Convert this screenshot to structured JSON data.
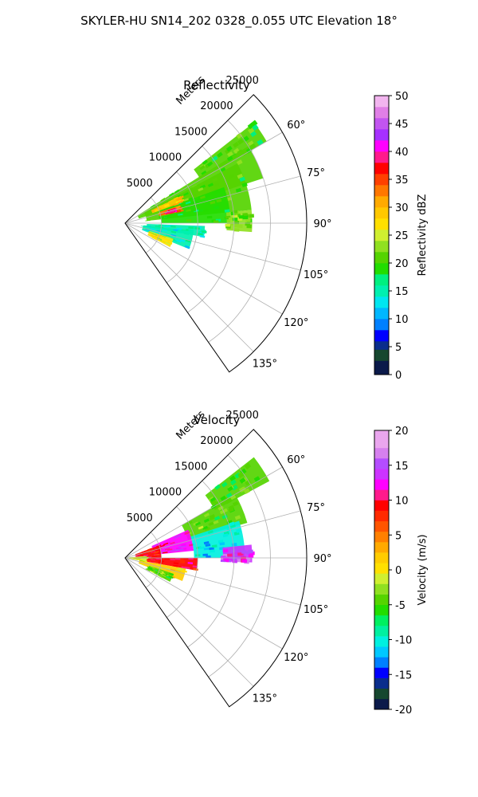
{
  "figure": {
    "suptitle": "SKYLER-HU  SN14_202  0328_0.055 UTC Elevation 18°"
  },
  "chart_data": [
    {
      "type": "heatmap",
      "projection": "polar-sector",
      "title": "Reflectivity",
      "radial_axis_label": "Meters",
      "radial_range": [
        0,
        25000
      ],
      "radial_ticks": [
        5000,
        10000,
        15000,
        20000,
        25000
      ],
      "radial_tick_labels": [
        "5000",
        "10000",
        "15000",
        "20000",
        "25000"
      ],
      "azimuth_range_deg": [
        45,
        145
      ],
      "azimuth_ticks": [
        60,
        75,
        90,
        105,
        120,
        135
      ],
      "azimuth_tick_labels": [
        "60°",
        "75°",
        "90°",
        "105°",
        "120°",
        "135°"
      ],
      "grid": true,
      "colorbar": {
        "label": "Reflectivity dBZ",
        "range": [
          0,
          50
        ],
        "ticks": [
          0,
          5,
          10,
          15,
          20,
          25,
          30,
          35,
          40,
          45,
          50
        ],
        "tick_labels": [
          "0",
          "5",
          "10",
          "15",
          "20",
          "25",
          "30",
          "35",
          "40",
          "45",
          "50"
        ],
        "stops": [
          [
            0,
            "#0b1a4a"
          ],
          [
            2.5,
            "#16472f"
          ],
          [
            4.5,
            "#0a2d8c"
          ],
          [
            6,
            "#0000ff"
          ],
          [
            8,
            "#0080ff"
          ],
          [
            10,
            "#00b7ff"
          ],
          [
            12,
            "#00e6f0"
          ],
          [
            14,
            "#00f0b0"
          ],
          [
            16,
            "#00f080"
          ],
          [
            18,
            "#22dd00"
          ],
          [
            20,
            "#55d400"
          ],
          [
            22,
            "#90e020"
          ],
          [
            24,
            "#d0ef30"
          ],
          [
            26,
            "#ffe000"
          ],
          [
            28,
            "#ffc800"
          ],
          [
            30,
            "#ffaa00"
          ],
          [
            32,
            "#ff7700"
          ],
          [
            34,
            "#ff4000"
          ],
          [
            36,
            "#ff0000"
          ],
          [
            38,
            "#ff1a8c"
          ],
          [
            40,
            "#ff00ff"
          ],
          [
            42,
            "#a630ff"
          ],
          [
            44,
            "#c255f0"
          ],
          [
            46,
            "#e07fe6"
          ],
          [
            48,
            "#f2b5ef"
          ],
          [
            50,
            "#fbe6fb"
          ]
        ]
      },
      "echo_regions": [
        {
          "az": [
            52,
            60
          ],
          "r": [
            12000,
            22500
          ],
          "v": 20
        },
        {
          "az": [
            58,
            72
          ],
          "r": [
            2000,
            20000
          ],
          "v": 21
        },
        {
          "az": [
            62,
            84
          ],
          "r": [
            3000,
            17500
          ],
          "v": 20
        },
        {
          "az": [
            70,
            90
          ],
          "r": [
            5000,
            14500
          ],
          "v": 19
        },
        {
          "az": [
            84,
            94
          ],
          "r": [
            14000,
            17500
          ],
          "v": 22
        },
        {
          "az": [
            92,
            100
          ],
          "r": [
            3000,
            11000
          ],
          "v": 15
        },
        {
          "az": [
            97,
            112
          ],
          "r": [
            2500,
            9500
          ],
          "v": 14
        },
        {
          "az": [
            108,
            118
          ],
          "r": [
            3500,
            7000
          ],
          "v": 26
        },
        {
          "az": [
            64,
            70
          ],
          "r": [
            4000,
            8500
          ],
          "v": 29
        },
        {
          "az": [
            72,
            78
          ],
          "r": [
            5000,
            8000
          ],
          "v": 33
        },
        {
          "az": [
            74,
            77
          ],
          "r": [
            6000,
            7000
          ],
          "v": 39
        }
      ]
    },
    {
      "type": "heatmap",
      "projection": "polar-sector",
      "title": "Velocity",
      "radial_axis_label": "Meters",
      "radial_range": [
        0,
        25000
      ],
      "radial_ticks": [
        5000,
        10000,
        15000,
        20000,
        25000
      ],
      "radial_tick_labels": [
        "5000",
        "10000",
        "15000",
        "20000",
        "25000"
      ],
      "azimuth_range_deg": [
        45,
        145
      ],
      "azimuth_ticks": [
        60,
        75,
        90,
        105,
        120,
        135
      ],
      "azimuth_tick_labels": [
        "60°",
        "75°",
        "90°",
        "105°",
        "120°",
        "135°"
      ],
      "grid": true,
      "colorbar": {
        "label": "Velocity (m/s)",
        "range": [
          -20,
          20
        ],
        "ticks": [
          -20,
          -15,
          -10,
          -5,
          0,
          5,
          10,
          15,
          20
        ],
        "tick_labels": [
          "-20",
          "-15",
          "-10",
          "-5",
          "0",
          "5",
          "10",
          "15",
          "20"
        ],
        "stops": [
          [
            -20,
            "#0b1a4a"
          ],
          [
            -18.5,
            "#16472f"
          ],
          [
            -17,
            "#0a2d8c"
          ],
          [
            -15.5,
            "#0000ff"
          ],
          [
            -14,
            "#0080ff"
          ],
          [
            -12.5,
            "#00c8ff"
          ],
          [
            -11,
            "#00f0e0"
          ],
          [
            -9.5,
            "#00f0a0"
          ],
          [
            -8,
            "#00f060"
          ],
          [
            -6.5,
            "#22dd00"
          ],
          [
            -5,
            "#55d400"
          ],
          [
            -3.5,
            "#90e020"
          ],
          [
            -2,
            "#d0ef30"
          ],
          [
            -0.5,
            "#ffe000"
          ],
          [
            1,
            "#ffcc00"
          ],
          [
            2.5,
            "#ffaa00"
          ],
          [
            4,
            "#ff8000"
          ],
          [
            5.5,
            "#ff5500"
          ],
          [
            7,
            "#ff2a00"
          ],
          [
            8.5,
            "#ff0000"
          ],
          [
            10,
            "#ff1a8c"
          ],
          [
            11.5,
            "#ff00ff"
          ],
          [
            13,
            "#cc33ff"
          ],
          [
            14.5,
            "#b44dff"
          ],
          [
            16,
            "#d680ee"
          ],
          [
            17.5,
            "#eaa6ee"
          ],
          [
            20,
            "#fbe6fb"
          ]
        ]
      },
      "echo_regions": [
        {
          "az": [
            52,
            62
          ],
          "r": [
            14000,
            22500
          ],
          "v": -5
        },
        {
          "az": [
            60,
            74
          ],
          "r": [
            9000,
            17500
          ],
          "v": -4
        },
        {
          "az": [
            66,
            84
          ],
          "r": [
            4000,
            9500
          ],
          "v": 12
        },
        {
          "az": [
            70,
            90
          ],
          "r": [
            1500,
            5000
          ],
          "v": 9
        },
        {
          "az": [
            72,
            90
          ],
          "r": [
            9500,
            16500
          ],
          "v": -11
        },
        {
          "az": [
            84,
            92
          ],
          "r": [
            13500,
            17500
          ],
          "v": 14
        },
        {
          "az": [
            90,
            100
          ],
          "r": [
            3000,
            10000
          ],
          "v": 9
        },
        {
          "az": [
            100,
            112
          ],
          "r": [
            2000,
            8500
          ],
          "v": 1
        },
        {
          "az": [
            108,
            118
          ],
          "r": [
            3500,
            7000
          ],
          "v": -4
        },
        {
          "az": [
            85,
            100
          ],
          "r": [
            500,
            3000
          ],
          "v": -2
        }
      ]
    }
  ]
}
